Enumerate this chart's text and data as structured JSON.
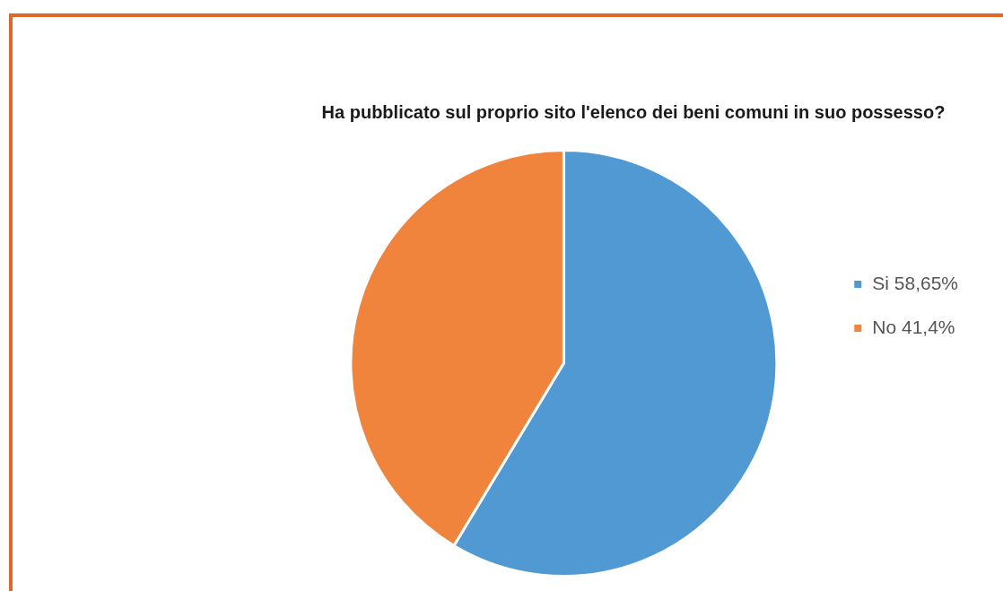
{
  "chart_data": {
    "type": "pie",
    "title": "Ha pubblicato sul proprio sito l'elenco dei beni comuni in suo possesso?",
    "categories": [
      "Si 58,65%",
      "No 41,4%"
    ],
    "values": [
      58.65,
      41.4
    ],
    "colors": [
      "#5199d3",
      "#f0843c"
    ],
    "legend": "right"
  }
}
